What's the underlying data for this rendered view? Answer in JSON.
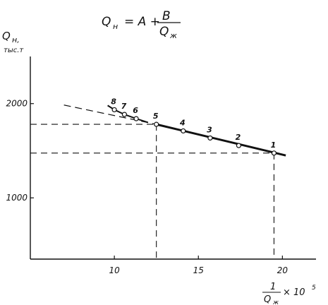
{
  "chart_data": {
    "type": "scatter",
    "title": {
      "lhs": "Q",
      "lhs_sub": "н",
      "eq": "= A +",
      "num": "B",
      "den": "Q",
      "den_sub": "ж"
    },
    "ylabel": {
      "main": "Q",
      "sub": "н,",
      "unit": "тыс.т"
    },
    "xlabel": {
      "num": "1",
      "den": "Q",
      "den_sub": "ж",
      "mult": "× 10",
      "exp": "5"
    },
    "xlim": [
      5,
      22
    ],
    "ylim": [
      350,
      2500
    ],
    "x_ticks": [
      10,
      15,
      20
    ],
    "x_tick_labels": [
      "10",
      "15",
      "20"
    ],
    "y_ticks": [
      1000,
      2000
    ],
    "y_tick_labels": [
      "1000",
      "2000"
    ],
    "grid": false,
    "points": [
      {
        "label": "1",
        "x": 19.5,
        "y": 1475
      },
      {
        "label": "2",
        "x": 17.4,
        "y": 1555
      },
      {
        "label": "3",
        "x": 15.7,
        "y": 1635
      },
      {
        "label": "4",
        "x": 14.1,
        "y": 1710
      },
      {
        "label": "5",
        "x": 12.5,
        "y": 1780
      },
      {
        "label": "6",
        "x": 11.3,
        "y": 1840
      },
      {
        "label": "7",
        "x": 10.6,
        "y": 1885
      },
      {
        "label": "8",
        "x": 10.0,
        "y": 1935
      }
    ],
    "fit_line": {
      "x": [
        12.5,
        20.2
      ],
      "y": [
        1780,
        1450
      ]
    },
    "fit_extension": {
      "x": [
        7.0,
        12.5
      ],
      "y": [
        1985,
        1780
      ]
    },
    "upper_curve": {
      "x": [
        9.6,
        10.0,
        10.6,
        11.3,
        12.0
      ],
      "y": [
        1980,
        1935,
        1885,
        1840,
        1800
      ]
    },
    "reference_lines": [
      {
        "label": "5",
        "x": 12.5,
        "y": 1780
      },
      {
        "label": "1",
        "x": 19.5,
        "y": 1475
      }
    ]
  }
}
